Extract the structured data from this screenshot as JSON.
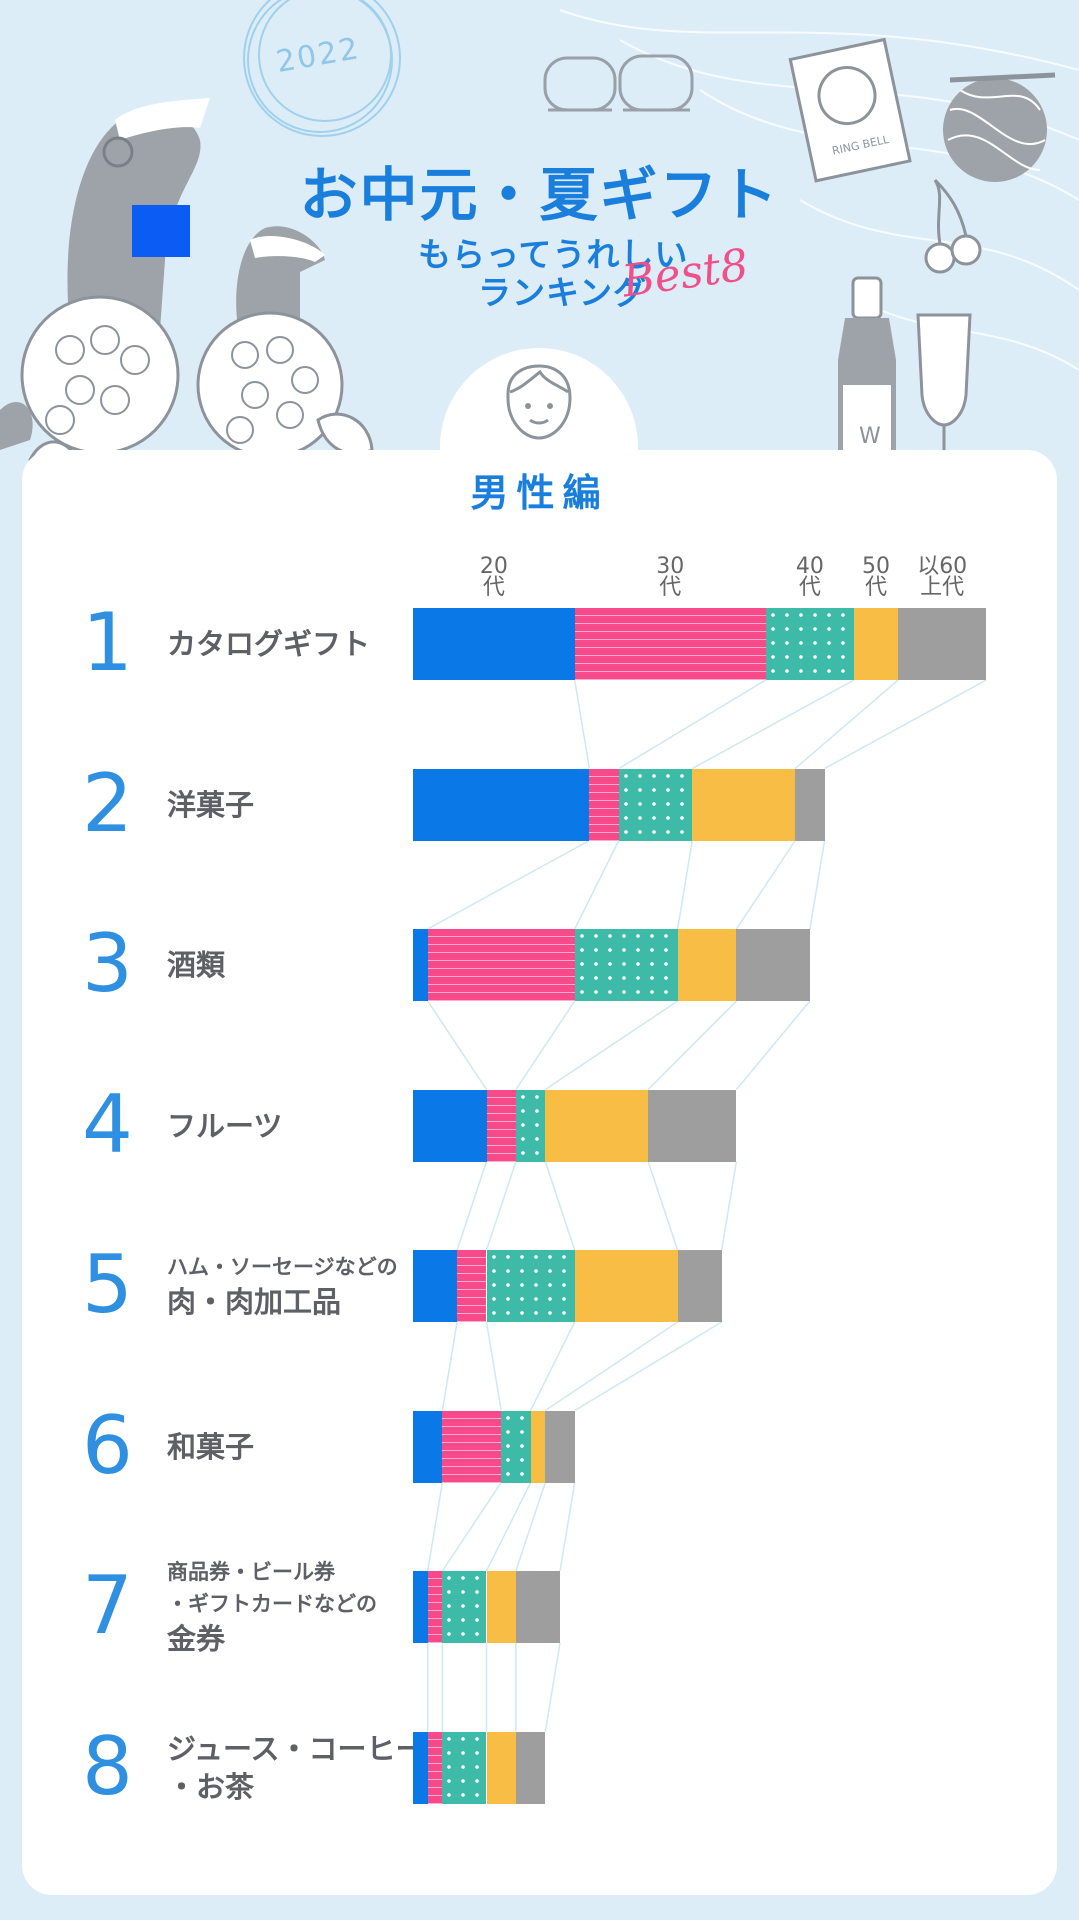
{
  "header": {
    "year": "2022",
    "title": "お中元・夏ギフト",
    "subtitle_line1": "もらってうれしい",
    "subtitle_line2": "ランキング",
    "subtitle_accent": "Best8"
  },
  "section": {
    "title": "男性編"
  },
  "age_groups": [
    {
      "line1": "20",
      "line2": "代"
    },
    {
      "line1": "30",
      "line2": "代"
    },
    {
      "line1": "40",
      "line2": "代"
    },
    {
      "line1": "50",
      "line2": "代"
    },
    {
      "line1": "以60",
      "line2": "上代"
    }
  ],
  "chart_data": {
    "type": "bar",
    "stacked": true,
    "orientation": "horizontal",
    "x_units": "percent",
    "categories": [
      "カタログギフト",
      "洋菓子",
      "酒類",
      "フルーツ",
      "ハム・ソーセージなどの 肉・肉加工品",
      "和菓子",
      "商品券・ビール券・ギフトカードなどの 金券",
      "ジュース・コーヒー・お茶"
    ],
    "series": [
      {
        "name": "20代",
        "color": "#0a78e6",
        "pattern": "solid",
        "values": [
          11,
          12,
          1,
          5,
          3,
          2,
          1,
          1
        ]
      },
      {
        "name": "30代",
        "color": "#f64a8a",
        "pattern": "lines",
        "values": [
          13,
          2,
          10,
          2,
          2,
          4,
          1,
          1
        ]
      },
      {
        "name": "40代",
        "color": "#3dbaa8",
        "pattern": "dots",
        "values": [
          6,
          5,
          7,
          2,
          6,
          2,
          3,
          3
        ]
      },
      {
        "name": "50代",
        "color": "#f8bd45",
        "pattern": "solid",
        "values": [
          3,
          7,
          4,
          7,
          7,
          1,
          2,
          2
        ]
      },
      {
        "name": "以60上代",
        "color": "#9e9e9e",
        "pattern": "solid",
        "values": [
          6,
          2,
          5,
          6,
          3,
          2,
          3,
          2
        ]
      }
    ],
    "grid": false,
    "legend": "top, as column headers"
  },
  "rows": [
    {
      "rank": "1",
      "label_lines": [
        {
          "text": "カタログギフト",
          "size": "big"
        }
      ]
    },
    {
      "rank": "2",
      "label_lines": [
        {
          "text": "洋菓子",
          "size": "big"
        }
      ]
    },
    {
      "rank": "3",
      "label_lines": [
        {
          "text": "酒類",
          "size": "big"
        }
      ]
    },
    {
      "rank": "4",
      "label_lines": [
        {
          "text": "フルーツ",
          "size": "big"
        }
      ]
    },
    {
      "rank": "5",
      "label_lines": [
        {
          "text": "ハム・ソーセージなどの",
          "size": "small"
        },
        {
          "text": "肉・肉加工品",
          "size": "big"
        }
      ]
    },
    {
      "rank": "6",
      "label_lines": [
        {
          "text": "和菓子",
          "size": "big"
        }
      ]
    },
    {
      "rank": "7",
      "label_lines": [
        {
          "text": "商品券・ビール券",
          "size": "small"
        },
        {
          "text": "・ギフトカードなどの",
          "size": "small"
        },
        {
          "text": "金券",
          "size": "big"
        }
      ]
    },
    {
      "rank": "8",
      "label_lines": [
        {
          "text": "ジュース・コーヒー",
          "size": "big"
        },
        {
          "text": "・お茶",
          "size": "big"
        }
      ]
    }
  ],
  "decorations": {
    "bottle_label": "W",
    "package_label": "RING BELL"
  },
  "colors": {
    "background": "#dcedf7",
    "accent_blue": "#1a7fdc",
    "accent_pink": "#f0508a",
    "rank_number": "#2f8fe0",
    "connector": "#cfe8f1"
  }
}
